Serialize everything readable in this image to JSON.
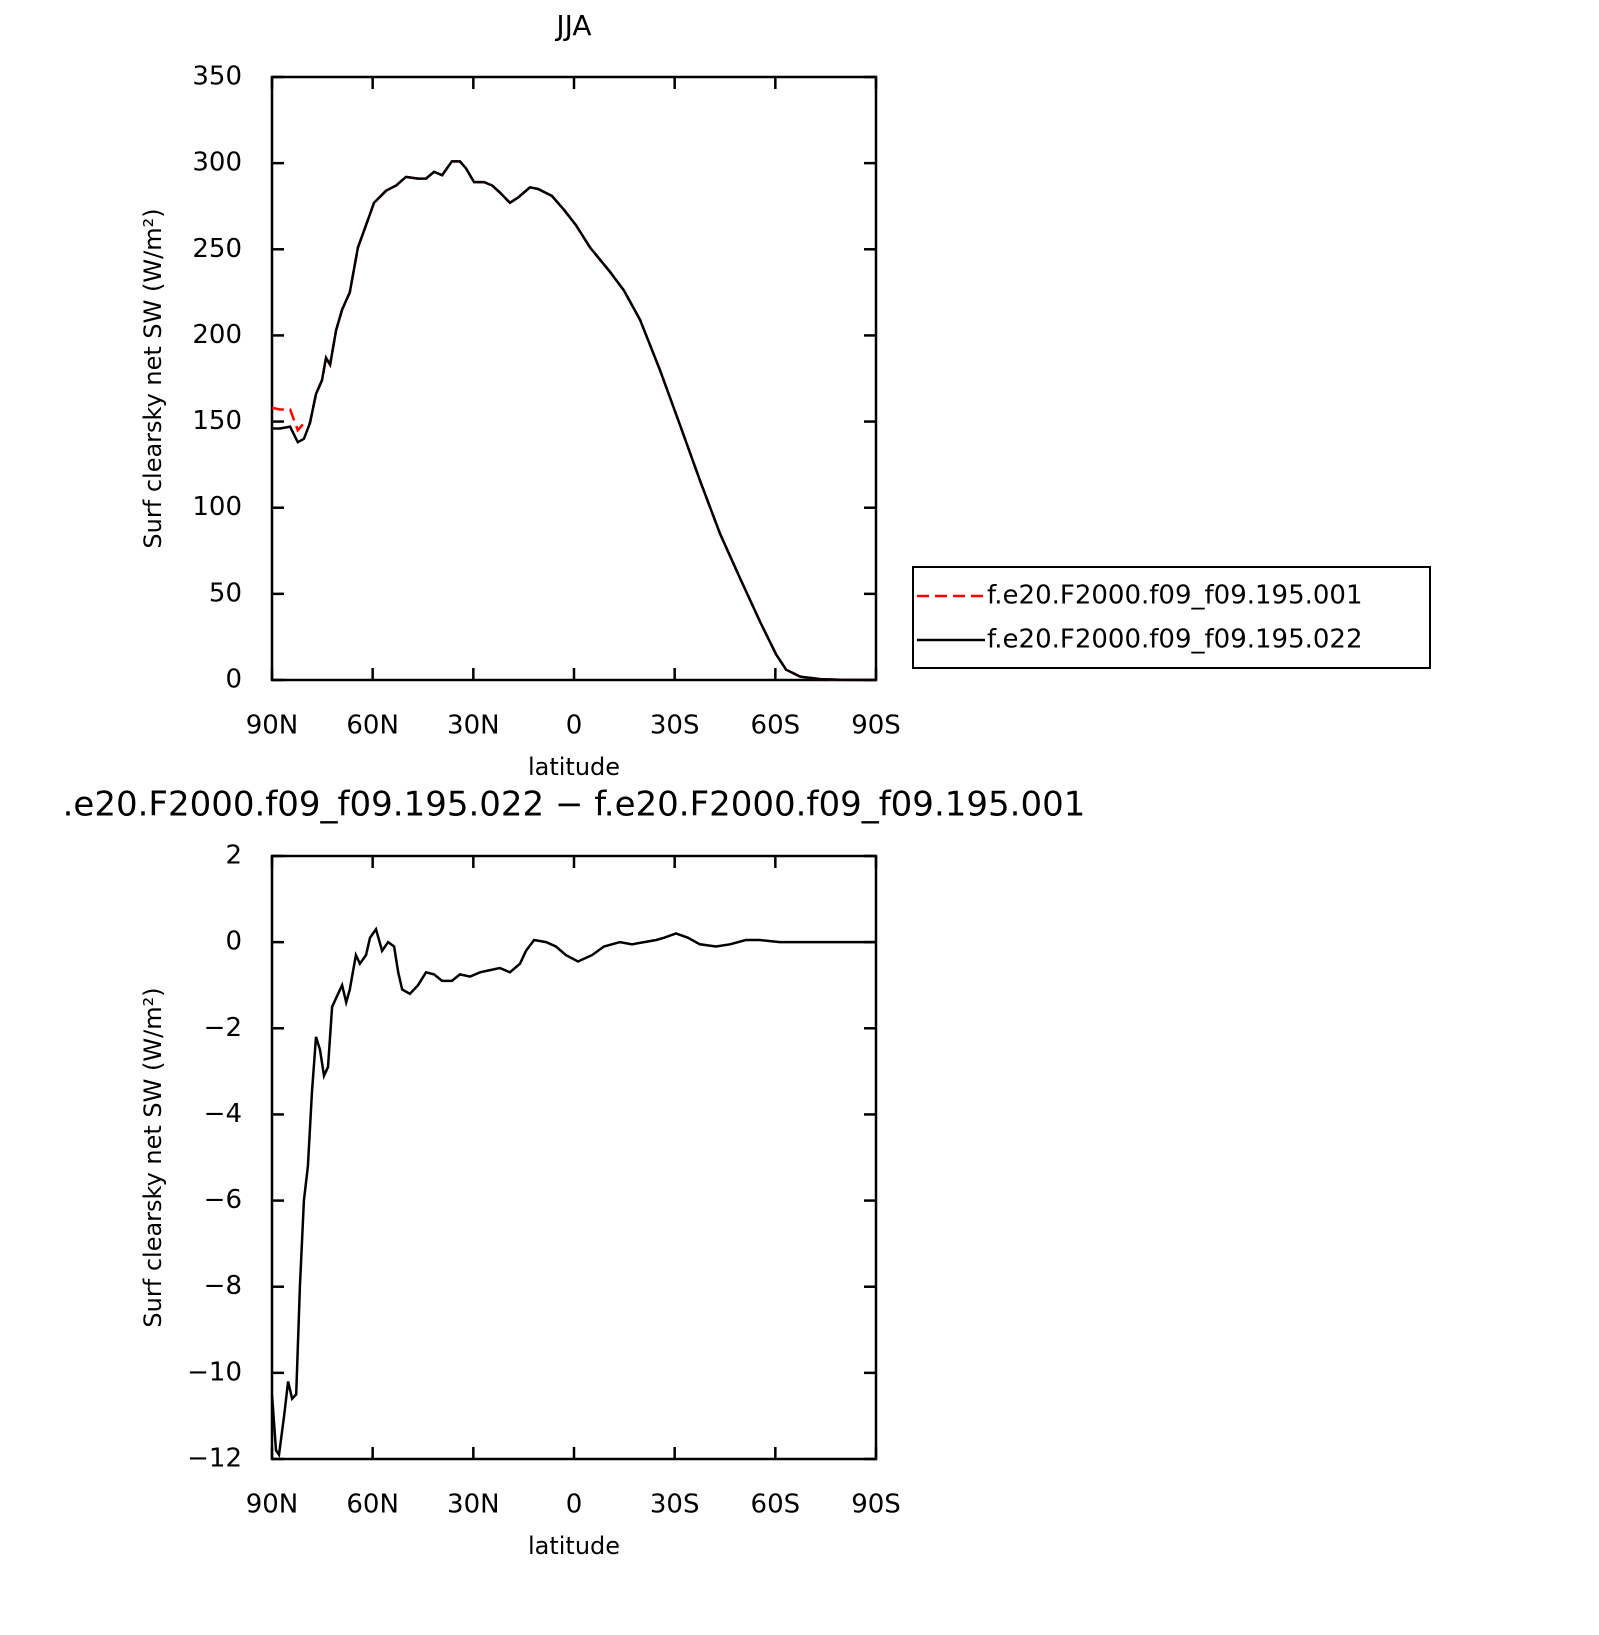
{
  "chart_data": [
    {
      "type": "line",
      "title": "JJA",
      "xlabel": "latitude",
      "ylabel": "Surf clearsky net SW (W/m²)",
      "xlim": [
        90,
        -90
      ],
      "xticks": [
        {
          "value": 90,
          "label": "90N"
        },
        {
          "value": 60,
          "label": "60N"
        },
        {
          "value": 30,
          "label": "30N"
        },
        0,
        {
          "value": -30,
          "label": "30S"
        },
        {
          "value": -60,
          "label": "60S"
        },
        {
          "value": -90,
          "label": "90S"
        }
      ],
      "ylim": [
        0,
        350
      ],
      "yticks": [
        0,
        50,
        100,
        150,
        200,
        250,
        300,
        350
      ],
      "legend": "outside-right",
      "x": [
        90,
        87.6,
        84.6,
        82.3,
        80.5,
        78.7,
        76.9,
        75.1,
        73.9,
        72.7,
        70.9,
        69.1,
        66.8,
        64.4,
        62,
        59.6,
        56,
        53,
        50.1,
        46.5,
        44.1,
        41.7,
        39.3,
        36.4,
        34,
        32.2,
        29.8,
        26.8,
        24.4,
        22.1,
        19.1,
        16.7,
        13.1,
        10.7,
        6.6,
        3,
        -0.6,
        -4.8,
        -10.7,
        -14.9,
        -19.7,
        -25.6,
        -31.6,
        -37.5,
        -43.5,
        -49.5,
        -55.4,
        -60.2,
        -63.2,
        -67.4,
        -73.3,
        -79.3,
        -90
      ],
      "series": [
        {
          "name": "f.e20.F2000.f09_f09.195.001",
          "color": "#ff0000",
          "line_style": "dashed",
          "values": [
            158,
            157,
            157,
            145,
            149,
            149,
            166,
            174,
            187,
            183,
            203,
            215,
            225,
            251,
            264,
            277,
            284,
            287,
            292,
            291,
            291,
            295,
            293,
            301,
            301,
            297,
            289,
            289,
            287,
            283,
            277,
            280,
            286,
            285,
            281,
            273,
            264,
            251,
            237,
            226,
            209,
            180,
            148,
            116,
            85,
            59,
            34,
            15,
            6,
            2,
            0.5,
            0.1,
            0
          ]
        },
        {
          "name": "f.e20.F2000.f09_f09.195.022",
          "color": "#000000",
          "line_style": "solid",
          "values": [
            146,
            146,
            147,
            138,
            140,
            149,
            166,
            174,
            187,
            183,
            203,
            215,
            225,
            251,
            264,
            277,
            284,
            287,
            292,
            291,
            291,
            295,
            293,
            301,
            301,
            297,
            289,
            289,
            287,
            283,
            277,
            280,
            286,
            285,
            281,
            273,
            264,
            251,
            237,
            226,
            209,
            180,
            148,
            116,
            85,
            59,
            34,
            15,
            6,
            2,
            0.5,
            0.1,
            0
          ]
        }
      ]
    },
    {
      "type": "line",
      "title": ".e20.F2000.f09_f09.195.022 − f.e20.F2000.f09_f09.195.001",
      "xlabel": "latitude",
      "ylabel": "Surf clearsky net SW (W/m²)",
      "xlim": [
        90,
        -90
      ],
      "xticks": [
        {
          "value": 90,
          "label": "90N"
        },
        {
          "value": 60,
          "label": "60N"
        },
        {
          "value": 30,
          "label": "30N"
        },
        0,
        {
          "value": -30,
          "label": "30S"
        },
        {
          "value": -60,
          "label": "60S"
        },
        {
          "value": -90,
          "label": "90S"
        }
      ],
      "ylim": [
        -12,
        2
      ],
      "yticks": [
        {
          "value": -12,
          "label": "−12"
        },
        {
          "value": -10,
          "label": "−10"
        },
        {
          "value": -8,
          "label": "−8"
        },
        {
          "value": -6,
          "label": "−6"
        },
        {
          "value": -4,
          "label": "−4"
        },
        {
          "value": -2,
          "label": "−2"
        },
        0,
        2
      ],
      "x": [
        90,
        88.8,
        87.9,
        86.4,
        85.2,
        84,
        82.8,
        81.7,
        80.5,
        79.3,
        78.1,
        76.9,
        75.7,
        74.5,
        73.3,
        72.1,
        70.9,
        69.1,
        67.9,
        66.8,
        65,
        63.8,
        62,
        60.8,
        59,
        57.2,
        55.4,
        53.6,
        52.4,
        51.2,
        48.9,
        46.5,
        44.1,
        41.7,
        39.3,
        36.4,
        34,
        31,
        28,
        25,
        22.1,
        19.1,
        16.1,
        14.3,
        11.9,
        8.3,
        5.4,
        2.4,
        -1.2,
        -5.4,
        -8.9,
        -13.7,
        -17.3,
        -20.9,
        -24.5,
        -26.8,
        -30.4,
        -34,
        -37.5,
        -42.3,
        -46.5,
        -51.2,
        -55.4,
        -61.3,
        -67.4,
        -90
      ],
      "series": [
        {
          "color": "#000000",
          "line_style": "solid",
          "values": [
            -10.5,
            -11.8,
            -11.9,
            -11,
            -10.2,
            -10.6,
            -10.5,
            -8,
            -6,
            -5.2,
            -3.5,
            -2.2,
            -2.5,
            -3.1,
            -2.9,
            -1.5,
            -1.3,
            -1,
            -1.4,
            -1.1,
            -0.3,
            -0.5,
            -0.3,
            0.1,
            0.3,
            -0.2,
            0,
            -0.1,
            -0.7,
            -1.1,
            -1.2,
            -1,
            -0.7,
            -0.75,
            -0.9,
            -0.9,
            -0.75,
            -0.8,
            -0.7,
            -0.65,
            -0.6,
            -0.7,
            -0.5,
            -0.2,
            0.05,
            0,
            -0.1,
            -0.3,
            -0.45,
            -0.3,
            -0.1,
            0,
            -0.05,
            0,
            0.05,
            0.1,
            0.2,
            0.1,
            -0.05,
            -0.1,
            -0.05,
            0.05,
            0.05,
            0,
            0,
            0
          ]
        }
      ]
    }
  ]
}
